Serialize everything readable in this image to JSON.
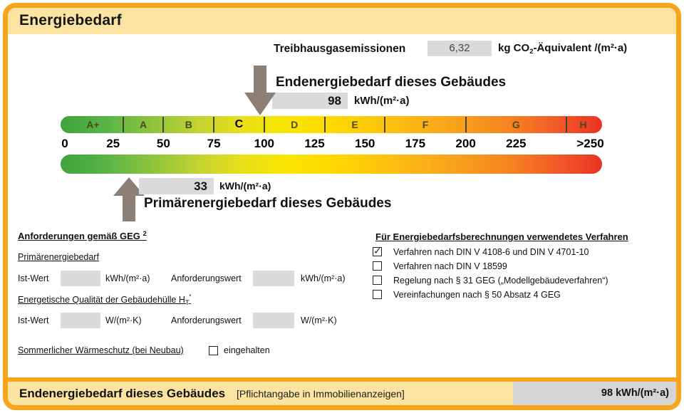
{
  "page": {
    "title": "Energiebedarf"
  },
  "emissions": {
    "label": "Treibhausgasemissionen",
    "value": "6,32",
    "unit_prefix": "kg CO",
    "unit_sub": "2",
    "unit_suffix": "-Äquivalent /(m²·a)"
  },
  "end_energy": {
    "title": "Endenergiebedarf dieses Gebäudes",
    "value": "98",
    "unit": "kWh/(m²·a)"
  },
  "primary_energy": {
    "title": "Primärenergiebedarf dieses Gebäudes",
    "value": "33",
    "unit": "kWh/(m²·a)"
  },
  "scale": {
    "type": "band-scale",
    "current_class": "C",
    "end_energy_value": 98,
    "primary_energy_value": 33,
    "max_value": 250,
    "classes": [
      {
        "label": "A+",
        "min": 0,
        "max": 30
      },
      {
        "label": "A",
        "min": 30,
        "max": 50
      },
      {
        "label": "B",
        "min": 50,
        "max": 75
      },
      {
        "label": "C",
        "min": 75,
        "max": 100
      },
      {
        "label": "D",
        "min": 100,
        "max": 130
      },
      {
        "label": "E",
        "min": 130,
        "max": 160
      },
      {
        "label": "F",
        "min": 160,
        "max": 200
      },
      {
        "label": "G",
        "min": 200,
        "max": 250
      },
      {
        "label": "H",
        "min": 250,
        "max": null
      }
    ],
    "ticks": [
      "0",
      "25",
      "50",
      "75",
      "100",
      "125",
      "150",
      "175",
      "200",
      "225",
      ">250"
    ],
    "tick_values": [
      0,
      25,
      50,
      75,
      100,
      125,
      150,
      175,
      200,
      225,
      250
    ],
    "gradient": [
      "#3FA43C",
      "#58B447",
      "#8CC43E",
      "#C1D232",
      "#E8DF1B",
      "#F9E600",
      "#FFD900",
      "#FDC70C",
      "#FAB117",
      "#F79C1D",
      "#F58220",
      "#F15A29",
      "#EA3323"
    ]
  },
  "requirements": {
    "heading": "Anforderungen gemäß GEG",
    "heading_sup": "2",
    "primary": {
      "heading": "Primärenergiebedarf",
      "ist_label": "Ist-Wert",
      "ist_value": "",
      "ist_unit": "kWh/(m²·a)",
      "anf_label": "Anforderungswert",
      "anf_value": "",
      "anf_unit": "kWh/(m²·a)"
    },
    "envelope": {
      "heading_main": "Energetische Qualität der Gebäudehülle H",
      "heading_sub": "T",
      "heading_prime": "'",
      "ist_label": "Ist-Wert",
      "ist_value": "",
      "ist_unit": "W/(m²·K)",
      "anf_label": "Anforderungswert",
      "anf_value": "",
      "anf_unit": "W/(m²·K)"
    },
    "summer": {
      "heading": "Sommerlicher Wärmeschutz (bei Neubau)",
      "checkbox_label": "eingehalten",
      "checked": false
    }
  },
  "methods": {
    "heading": "Für Energiebedarfsberechnungen verwendetes Verfahren",
    "items": [
      {
        "label": "Verfahren nach DIN V 4108-6 und DIN V 4701-10",
        "checked": true
      },
      {
        "label": "Verfahren nach DIN V 18599",
        "checked": false
      },
      {
        "label": "Regelung nach § 31 GEG („Modellgebäudeverfahren“)",
        "checked": false
      },
      {
        "label": "Vereinfachungen nach § 50 Absatz 4 GEG",
        "checked": false
      }
    ]
  },
  "footer": {
    "title": "Endenergiebedarf dieses Gebäudes",
    "note": "[Pflichtangabe in Immobilienanzeigen]",
    "value": "98 kWh/(m²·a)"
  },
  "colors": {
    "frame_orange": "#F6A51D",
    "band_cream": "#FBE3A2",
    "value_box_gray": "#DBDBDB",
    "arrow_gray": "#8C8076",
    "check_mark": "#1c2a52"
  }
}
